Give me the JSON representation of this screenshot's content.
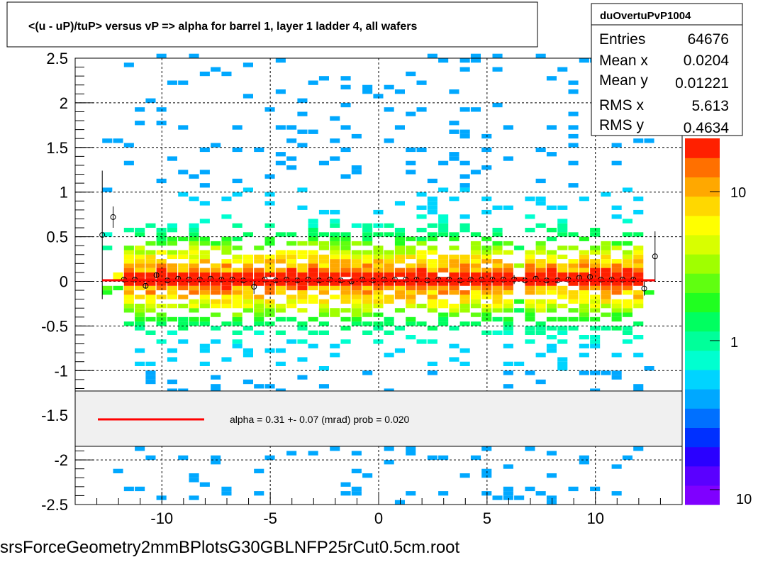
{
  "title": "<(u - uP)/tuP> versus   vP => alpha for barrel 1, layer 1 ladder 4, all wafers",
  "footer": "srsForceGeometry2mmBPlotsG30GBLNFP25rCut0.5cm.root",
  "stats": {
    "name": "duOvertuPvP1004",
    "rows": [
      {
        "label": "Entries",
        "value": "64676"
      },
      {
        "label": "Mean x",
        "value": "0.0204"
      },
      {
        "label": "Mean y",
        "value": "0.01221"
      },
      {
        "label": "RMS x",
        "value": "5.613"
      },
      {
        "label": "RMS y",
        "value": "0.4634"
      }
    ]
  },
  "fit_legend": {
    "text": "alpha =    0.31 +-  0.07 (mrad) prob = 0.020",
    "line_color": "#ff0000"
  },
  "colorbar": {
    "labels": [
      "10",
      "1",
      "10"
    ],
    "scale": "log"
  },
  "chart_data": {
    "type": "heatmap",
    "xlim": [
      -14,
      14
    ],
    "ylim": [
      -2.5,
      2.5
    ],
    "x_ticks": [
      "-10",
      "-5",
      "0",
      "5",
      "10"
    ],
    "x_tick_values": [
      -10,
      -5,
      0,
      5,
      10
    ],
    "y_ticks": [
      "2.5",
      "2",
      "1.5",
      "1",
      "0.5",
      "0",
      "-0.5",
      "-1",
      "-1.5",
      "-2",
      "-2.5"
    ],
    "y_tick_values": [
      2.5,
      2,
      1.5,
      1,
      0.5,
      0,
      -0.5,
      -1,
      -1.5,
      -2,
      -2.5
    ],
    "grid": true,
    "profile_points": [
      {
        "x": -12.75,
        "y": 0.52,
        "err": 0.72
      },
      {
        "x": -12.25,
        "y": 0.72,
        "err": 0.12
      },
      {
        "x": -11.75,
        "y": 0.02,
        "err": 0.02
      },
      {
        "x": -11.25,
        "y": 0.02,
        "err": 0.02
      },
      {
        "x": -10.75,
        "y": -0.05,
        "err": 0.03
      },
      {
        "x": -10.25,
        "y": 0.07,
        "err": 0.03
      },
      {
        "x": -9.75,
        "y": 0.01,
        "err": 0.02
      },
      {
        "x": -9.25,
        "y": 0.03,
        "err": 0.02
      },
      {
        "x": -8.75,
        "y": 0.02,
        "err": 0.02
      },
      {
        "x": -8.25,
        "y": 0.02,
        "err": 0.02
      },
      {
        "x": -7.75,
        "y": 0.03,
        "err": 0.02
      },
      {
        "x": -7.25,
        "y": 0.02,
        "err": 0.02
      },
      {
        "x": -6.75,
        "y": 0.02,
        "err": 0.02
      },
      {
        "x": -6.25,
        "y": 0.01,
        "err": 0.02
      },
      {
        "x": -5.75,
        "y": -0.06,
        "err": 0.08
      },
      {
        "x": -5.25,
        "y": 0.02,
        "err": 0.02
      },
      {
        "x": -4.75,
        "y": 0.01,
        "err": 0.02
      },
      {
        "x": -4.25,
        "y": 0.02,
        "err": 0.02
      },
      {
        "x": -3.75,
        "y": 0.01,
        "err": 0.02
      },
      {
        "x": -3.25,
        "y": 0.02,
        "err": 0.02
      },
      {
        "x": -2.75,
        "y": 0.01,
        "err": 0.02
      },
      {
        "x": -2.25,
        "y": 0.02,
        "err": 0.02
      },
      {
        "x": -1.75,
        "y": 0.01,
        "err": 0.02
      },
      {
        "x": -1.25,
        "y": 0.0,
        "err": 0.02
      },
      {
        "x": -0.75,
        "y": 0.02,
        "err": 0.02
      },
      {
        "x": -0.25,
        "y": 0.01,
        "err": 0.02
      },
      {
        "x": 0.25,
        "y": 0.02,
        "err": 0.02
      },
      {
        "x": 0.75,
        "y": 0.02,
        "err": 0.02
      },
      {
        "x": 1.25,
        "y": 0.02,
        "err": 0.02
      },
      {
        "x": 1.75,
        "y": 0.02,
        "err": 0.02
      },
      {
        "x": 2.25,
        "y": 0.01,
        "err": 0.02
      },
      {
        "x": 2.75,
        "y": 0.02,
        "err": 0.02
      },
      {
        "x": 3.25,
        "y": 0.02,
        "err": 0.02
      },
      {
        "x": 3.75,
        "y": 0.01,
        "err": 0.02
      },
      {
        "x": 4.25,
        "y": 0.02,
        "err": 0.02
      },
      {
        "x": 4.75,
        "y": 0.02,
        "err": 0.02
      },
      {
        "x": 5.25,
        "y": 0.02,
        "err": 0.02
      },
      {
        "x": 5.75,
        "y": 0.02,
        "err": 0.02
      },
      {
        "x": 6.25,
        "y": 0.02,
        "err": 0.05
      },
      {
        "x": 6.75,
        "y": 0.01,
        "err": 0.02
      },
      {
        "x": 7.25,
        "y": 0.03,
        "err": 0.03
      },
      {
        "x": 7.75,
        "y": 0.01,
        "err": 0.02
      },
      {
        "x": 8.25,
        "y": 0.01,
        "err": 0.02
      },
      {
        "x": 8.75,
        "y": 0.02,
        "err": 0.02
      },
      {
        "x": 9.25,
        "y": 0.04,
        "err": 0.02
      },
      {
        "x": 9.75,
        "y": 0.05,
        "err": 0.03
      },
      {
        "x": 10.25,
        "y": 0.02,
        "err": 0.02
      },
      {
        "x": 10.75,
        "y": 0.02,
        "err": 0.02
      },
      {
        "x": 11.25,
        "y": 0.02,
        "err": 0.02
      },
      {
        "x": 11.75,
        "y": 0.02,
        "err": 0.02
      },
      {
        "x": 12.25,
        "y": -0.08,
        "err": 0.08
      },
      {
        "x": 12.75,
        "y": 0.28,
        "err": 0.28
      }
    ],
    "fit_line": {
      "x": [
        -12.75,
        12.75
      ],
      "y": [
        0.012,
        0.012
      ]
    }
  }
}
